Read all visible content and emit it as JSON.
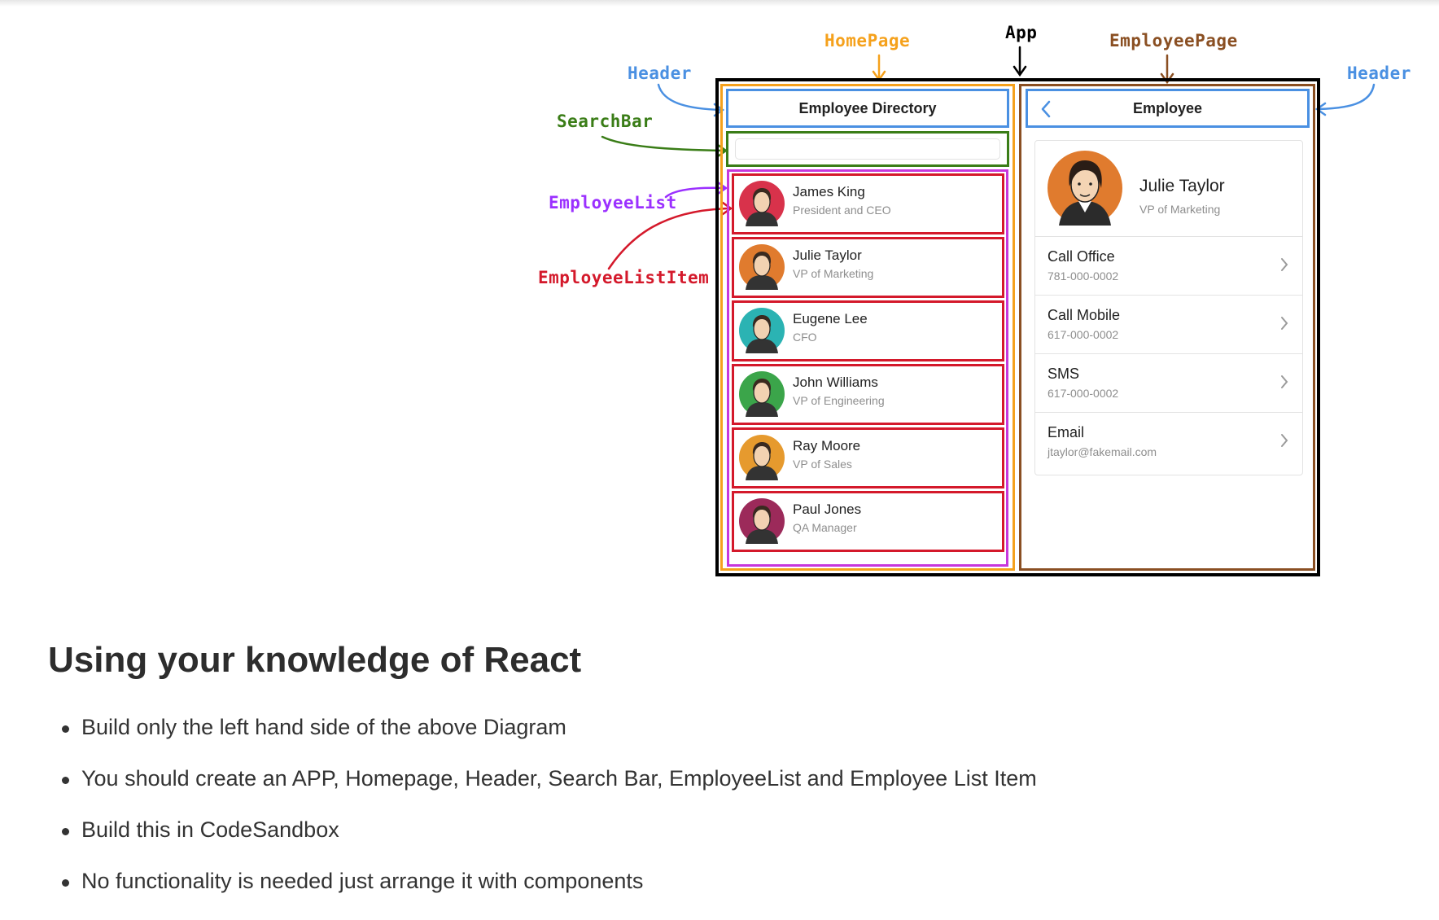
{
  "colors": {
    "header": "#4a90e2",
    "homepage": "#f5a11c",
    "app": "#000000",
    "employeepage": "#8a4f22",
    "searchbar": "#3a7d17",
    "employeelist": "#c737dc",
    "employeelistitem": "#d4192b"
  },
  "labels": {
    "homepage": "HomePage",
    "app": "App",
    "employeepage": "EmployeePage",
    "header_left": "Header",
    "header_right": "Header",
    "searchbar": "SearchBar",
    "employeelist": "EmployeeList",
    "employeelistitem": "EmployeeListItem"
  },
  "homepage": {
    "header_title": "Employee Directory",
    "search_placeholder": "",
    "employees": [
      {
        "name": "James King",
        "title": "President and CEO",
        "avatar_bg": "#d8324b"
      },
      {
        "name": "Julie Taylor",
        "title": "VP of Marketing",
        "avatar_bg": "#e07b2e"
      },
      {
        "name": "Eugene Lee",
        "title": "CFO",
        "avatar_bg": "#2bb3b3"
      },
      {
        "name": "John Williams",
        "title": "VP of Engineering",
        "avatar_bg": "#3ba54a"
      },
      {
        "name": "Ray Moore",
        "title": "VP of Sales",
        "avatar_bg": "#e69a2e"
      },
      {
        "name": "Paul Jones",
        "title": "QA Manager",
        "avatar_bg": "#9c2a5a"
      }
    ]
  },
  "employeepage": {
    "header_title": "Employee",
    "back_icon": "chevron-left-icon",
    "profile": {
      "name": "Julie Taylor",
      "title": "VP of Marketing",
      "avatar_bg": "#e07b2e"
    },
    "actions": [
      {
        "label": "Call Office",
        "value": "781-000-0002"
      },
      {
        "label": "Call Mobile",
        "value": "617-000-0002"
      },
      {
        "label": "SMS",
        "value": "617-000-0002"
      },
      {
        "label": "Email",
        "value": "jtaylor@fakemail.com"
      }
    ]
  },
  "content": {
    "heading": "Using your knowledge of React",
    "bullets": [
      "Build only the left hand side of the above Diagram",
      "You should create an APP, Homepage, Header, Search Bar, EmployeeList and Employee List Item",
      "Build this in CodeSandbox",
      "No functionality is needed just arrange it with components"
    ]
  }
}
